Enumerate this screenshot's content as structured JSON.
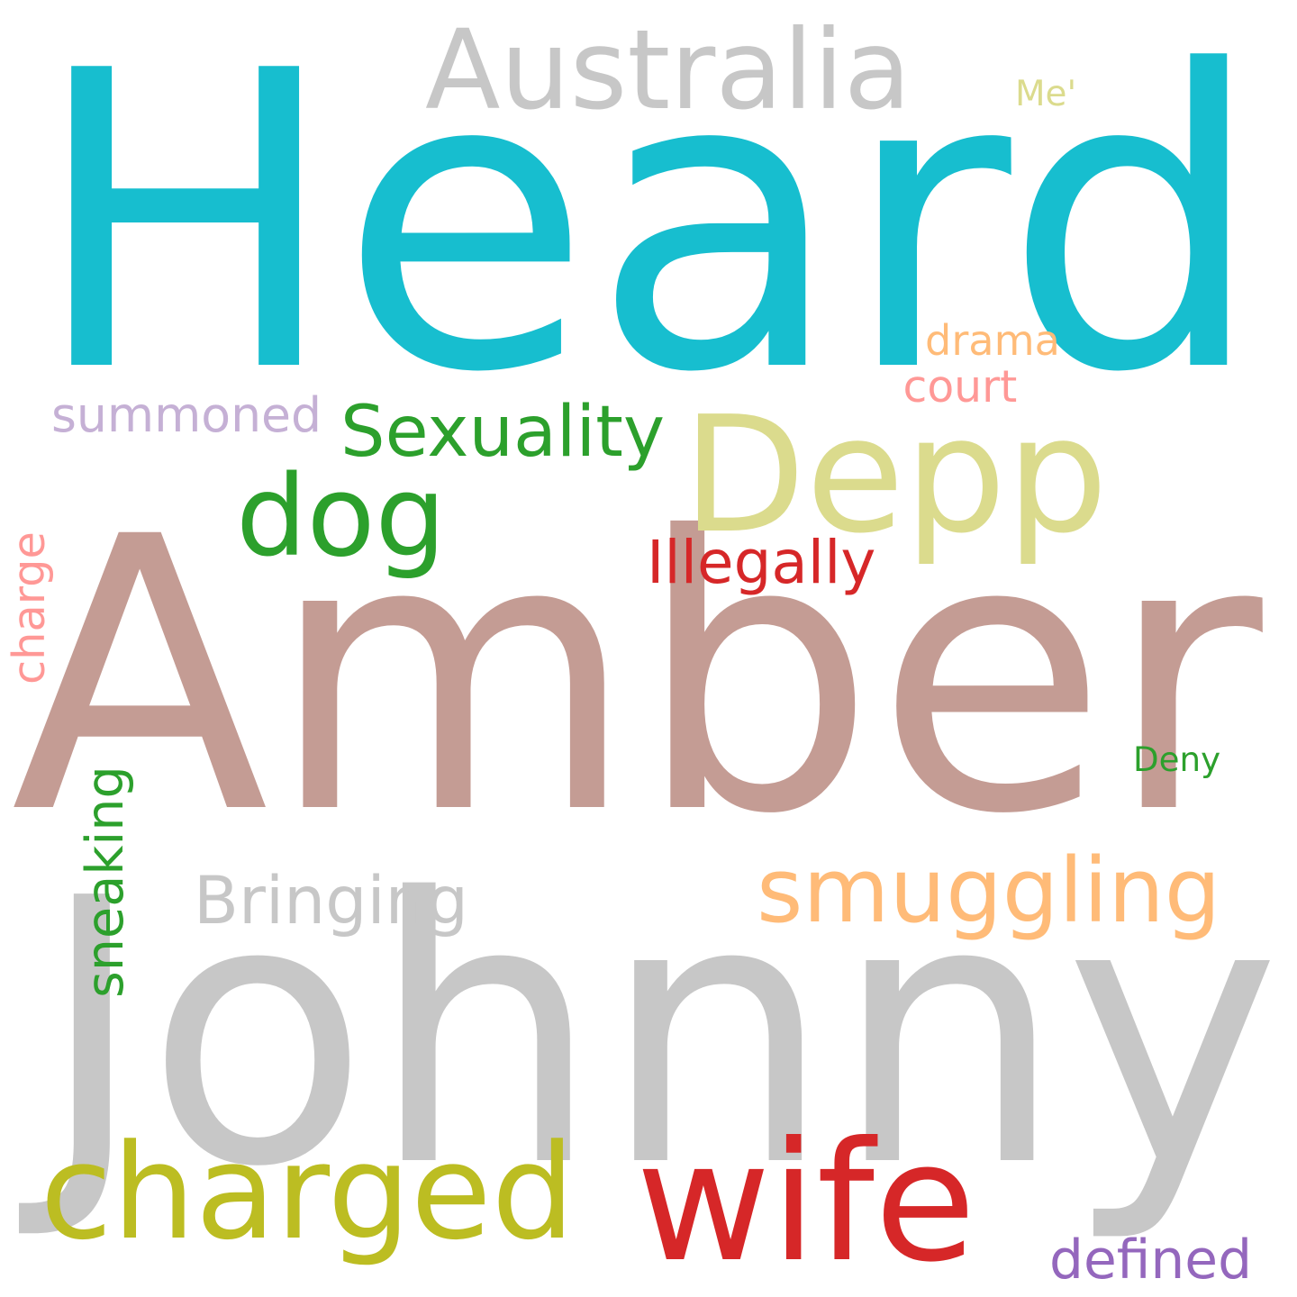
{
  "words": [
    {
      "id": "heard",
      "text": "Heard",
      "color": "#17becf",
      "orientation": "horizontal"
    },
    {
      "id": "amber",
      "text": "Amber",
      "color": "#c49c94",
      "orientation": "horizontal"
    },
    {
      "id": "johnny",
      "text": "Johnny",
      "color": "#c7c7c7",
      "orientation": "horizontal"
    },
    {
      "id": "australia",
      "text": "Australia",
      "color": "#c7c7c7",
      "orientation": "horizontal"
    },
    {
      "id": "depp",
      "text": "Depp",
      "color": "#dbdb8d",
      "orientation": "horizontal"
    },
    {
      "id": "dog",
      "text": "dog",
      "color": "#2ca02c",
      "orientation": "horizontal"
    },
    {
      "id": "sexuality",
      "text": "Sexuality",
      "color": "#2ca02c",
      "orientation": "horizontal"
    },
    {
      "id": "summoned",
      "text": "summoned",
      "color": "#c5b0d5",
      "orientation": "horizontal"
    },
    {
      "id": "drama",
      "text": "drama",
      "color": "#ffbb78",
      "orientation": "horizontal"
    },
    {
      "id": "court",
      "text": "court",
      "color": "#ff9896",
      "orientation": "horizontal"
    },
    {
      "id": "me",
      "text": "Me'",
      "color": "#dbdb8d",
      "orientation": "horizontal"
    },
    {
      "id": "illegally",
      "text": "Illegally",
      "color": "#d62728",
      "orientation": "horizontal"
    },
    {
      "id": "charge",
      "text": "charge",
      "color": "#ff9896",
      "orientation": "vertical"
    },
    {
      "id": "deny",
      "text": "Deny",
      "color": "#2ca02c",
      "orientation": "horizontal"
    },
    {
      "id": "smuggling",
      "text": "smuggling",
      "color": "#ffbb78",
      "orientation": "horizontal"
    },
    {
      "id": "bringing",
      "text": "Bringing",
      "color": "#c7c7c7",
      "orientation": "horizontal"
    },
    {
      "id": "sneaking",
      "text": "sneaking",
      "color": "#2ca02c",
      "orientation": "vertical"
    },
    {
      "id": "charged",
      "text": "charged",
      "color": "#bcbd22",
      "orientation": "horizontal"
    },
    {
      "id": "wife",
      "text": "wife",
      "color": "#d62728",
      "orientation": "horizontal"
    },
    {
      "id": "defined",
      "text": "defined",
      "color": "#9467bd",
      "orientation": "horizontal"
    }
  ]
}
